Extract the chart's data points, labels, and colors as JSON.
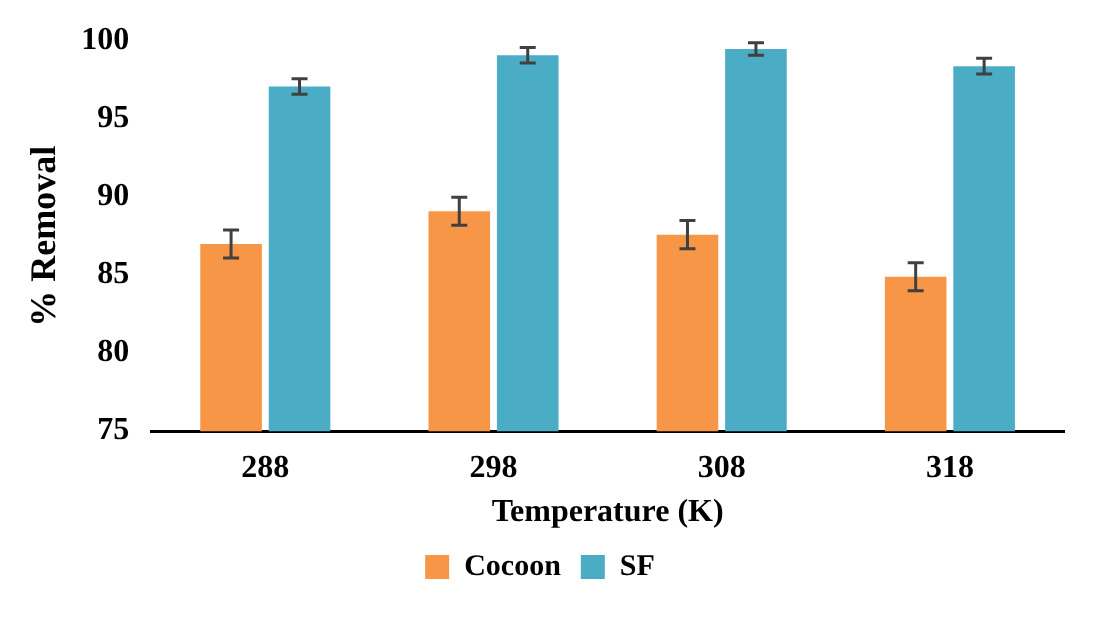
{
  "chart_data": {
    "type": "bar",
    "xlabel": "Temperature (K)",
    "ylabel": "% Removal",
    "categories": [
      "288",
      "298",
      "308",
      "318"
    ],
    "series": [
      {
        "name": "Cocoon",
        "color": "#f79646",
        "values": [
          87.0,
          89.1,
          87.6,
          84.9
        ],
        "errors": [
          0.9,
          0.9,
          0.9,
          0.9
        ]
      },
      {
        "name": "SF",
        "color": "#4bacc6",
        "values": [
          97.1,
          99.1,
          99.5,
          98.4
        ],
        "errors": [
          0.5,
          0.5,
          0.4,
          0.5
        ]
      }
    ],
    "ylim": [
      75,
      100
    ],
    "yticks": [
      75,
      80,
      85,
      90,
      95,
      100
    ],
    "grid": false,
    "legend": "bottom"
  }
}
